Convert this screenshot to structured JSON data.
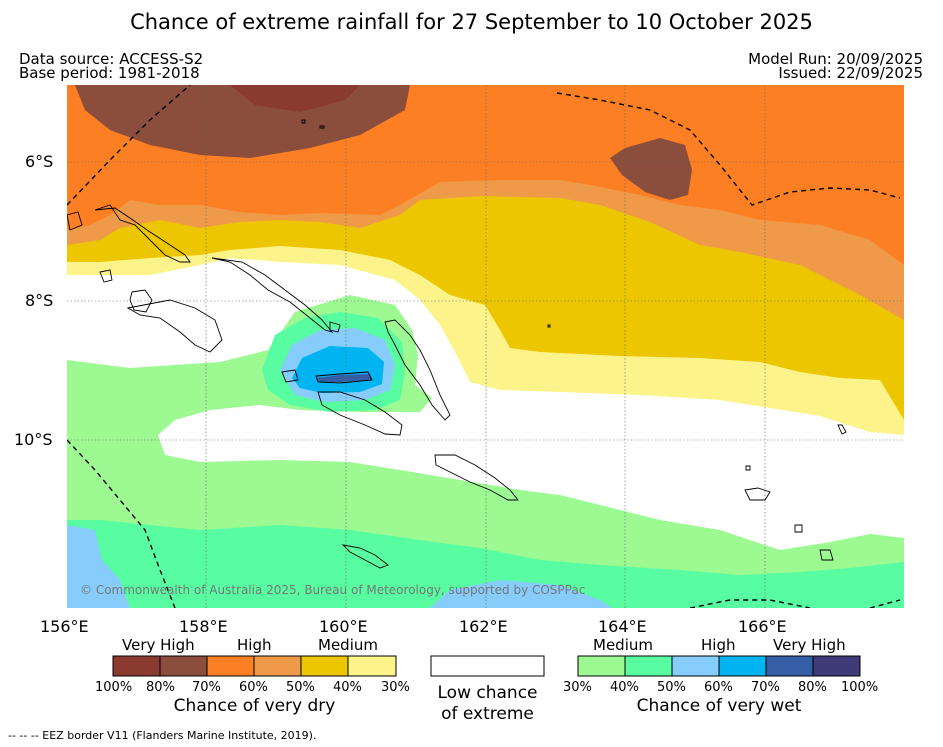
{
  "title": "Chance of extreme rainfall for 27 September to 10 October 2025",
  "header": {
    "data_source": "Data source: ACCESS-S2",
    "base_period": "Base period: 1981-2018",
    "model_run": "Model Run: 20/09/2025",
    "issued": "Issued: 22/09/2025"
  },
  "map": {
    "lat_labels": [
      "6°S",
      "8°S",
      "10°S"
    ],
    "lon_labels": [
      "156°E",
      "158°E",
      "160°E",
      "162°E",
      "164°E",
      "166°E"
    ],
    "copyright": "© Commonwealth of Australia 2025, Bureau of Meteorology, supported by COSPPac",
    "colors": {
      "dry_100": "#8b3a30",
      "dry_80": "#8b4d3c",
      "dry_70": "#fd7f23",
      "dry_60": "#ee9a48",
      "dry_50": "#ecc600",
      "dry_40": "#fdf38b",
      "none": "#ffffff",
      "wet_30": "#9dfa93",
      "wet_40": "#57fda0",
      "wet_50": "#86cdfb",
      "wet_60": "#00b3f1",
      "wet_70": "#345ea5",
      "wet_80": "#3f3a78"
    }
  },
  "legend": {
    "dry": {
      "categories": [
        "Very High",
        "High",
        "Medium"
      ],
      "percents": [
        "100%",
        "80%",
        "70%",
        "60%",
        "50%",
        "40%",
        "30%"
      ],
      "caption": "Chance of very dry"
    },
    "neutral": {
      "caption_line1": "Low chance",
      "caption_line2": "of extreme"
    },
    "wet": {
      "categories": [
        "Medium",
        "High",
        "Very High"
      ],
      "percents": [
        "30%",
        "40%",
        "50%",
        "60%",
        "70%",
        "80%",
        "100%"
      ],
      "caption": "Chance of very wet"
    }
  },
  "footer": {
    "eez_note": "--  --  -- EEZ border V11 (Flanders Marine Institute, 2019)."
  }
}
